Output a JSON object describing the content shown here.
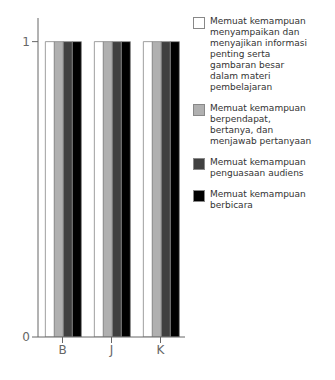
{
  "chart_data": {
    "type": "bar",
    "categories": [
      "B",
      "J",
      "K"
    ],
    "series": [
      {
        "name": "Memuat kemampuan\nmenyampaikan dan\nmenyajikan informasi\npenting serta\ngambaran besar\ndalam materi\npembelajaran",
        "color": "#ffffff",
        "values": [
          1,
          1,
          1
        ]
      },
      {
        "name": "Memuat kemampuan\nberpendapat,\nbertanya, dan\nmenjawab pertanyaan",
        "color": "#b0b0b0",
        "values": [
          1,
          1,
          1
        ]
      },
      {
        "name": "Memuat kemampuan\npenguasaan audiens",
        "color": "#404040",
        "values": [
          1,
          1,
          1
        ]
      },
      {
        "name": "Memuat kemampuan\nberbicara",
        "color": "#000000",
        "values": [
          1,
          1,
          1
        ]
      }
    ],
    "ylim": [
      0,
      1.08
    ],
    "yticks": [
      0,
      1
    ],
    "grid": false,
    "legend": "right"
  }
}
